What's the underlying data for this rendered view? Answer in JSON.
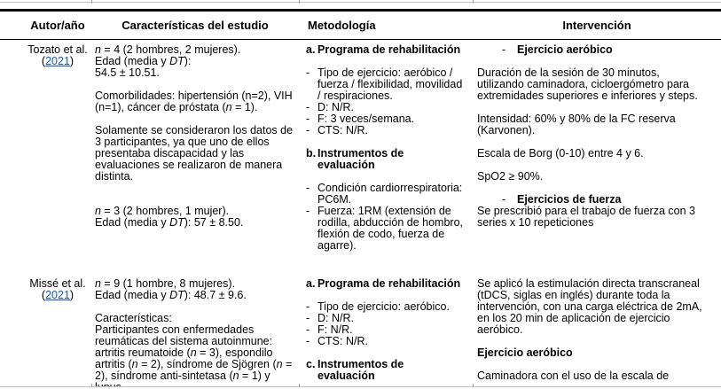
{
  "colors": {
    "text": "#000000",
    "link": "#1155cc",
    "rule": "#000000",
    "gridline": "#bfbfbf",
    "grid_tick": "#9e9e9e"
  },
  "table": {
    "headers": [
      "Autor/año",
      "Características del estudio",
      "Metodología",
      "Intervención"
    ],
    "rows": [
      {
        "author": {
          "blocks": [
            {
              "type": "p",
              "runs": [
                {
                  "t": "Tozato et al."
                }
              ]
            },
            {
              "type": "p",
              "runs": [
                {
                  "t": "("
                },
                {
                  "t": "2021",
                  "link": true
                },
                {
                  "t": ")"
                }
              ]
            }
          ]
        },
        "caracteristicas": {
          "blocks": [
            {
              "type": "p",
              "runs": [
                {
                  "t": "n",
                  "i": true
                },
                {
                  "t": " = 4 (2 hombres, 2 mujeres)."
                }
              ]
            },
            {
              "type": "p",
              "runs": [
                {
                  "t": "Edad (media y "
                },
                {
                  "t": "DT",
                  "i": true
                },
                {
                  "t": "):"
                }
              ]
            },
            {
              "type": "p",
              "runs": [
                {
                  "t": "54.5 ± 10.51."
                }
              ]
            },
            {
              "type": "p",
              "gap": 1,
              "runs": [
                {
                  "t": "Comorbilidades: hipertensión (n=2), VIH (n=1), cáncer de próstata ("
                },
                {
                  "t": "n",
                  "i": true
                },
                {
                  "t": " = 1)."
                }
              ]
            },
            {
              "type": "p",
              "gap": 1,
              "runs": [
                {
                  "t": "Solamente se consideraron los datos de 3 participantes, ya que uno de ellos presentaba discapacidad y las evaluaciones se realizaron de manera distinta."
                }
              ]
            },
            {
              "type": "p",
              "gap": 2,
              "runs": [
                {
                  "t": "n",
                  "i": true
                },
                {
                  "t": " = 3 (2 hombres, 1 mujer)."
                }
              ]
            },
            {
              "type": "p",
              "runs": [
                {
                  "t": "Edad (media y "
                },
                {
                  "t": "DT",
                  "i": true
                },
                {
                  "t": "): 57 ± 8.50."
                }
              ]
            }
          ]
        },
        "metodologia": {
          "blocks": [
            {
              "type": "alpha",
              "marker": "a.",
              "runs": [
                {
                  "t": "Programa de rehabilitación",
                  "b": true
                }
              ]
            },
            {
              "type": "dash",
              "gap": 1,
              "runs": [
                {
                  "t": "Tipo de ejercicio: aeróbico / fuerza / flexibilidad, movilidad / respiraciones."
                }
              ]
            },
            {
              "type": "dash",
              "runs": [
                {
                  "t": "D: N/R."
                }
              ]
            },
            {
              "type": "dash",
              "runs": [
                {
                  "t": "F: 3 veces/semana."
                }
              ]
            },
            {
              "type": "dash",
              "runs": [
                {
                  "t": "CTS: N/R."
                }
              ]
            },
            {
              "type": "alpha",
              "marker": "b.",
              "gap": 1,
              "runs": [
                {
                  "t": "Instrumentos de",
                  "b": true
                },
                {
                  "br": true
                },
                {
                  "t": "evaluación",
                  "b": true
                }
              ]
            },
            {
              "type": "dash",
              "gap": 1,
              "runs": [
                {
                  "t": "Condición cardiorrespiratoria: PC6M."
                }
              ]
            },
            {
              "type": "dash",
              "runs": [
                {
                  "t": "Fuerza: 1RM (extensión de rodilla, abducción de hombro, flexión de codo, fuerza de agarre)."
                }
              ]
            }
          ]
        },
        "intervencion": {
          "blocks": [
            {
              "type": "dashind",
              "runs": [
                {
                  "t": "Ejercicio aeróbico",
                  "b": true
                }
              ]
            },
            {
              "type": "p",
              "gap": 1,
              "runs": [
                {
                  "t": "Duración de la sesión de 30 minutos, utilizando caminadora, cicloergómetro para extremidades superiores e inferiores y steps."
                }
              ]
            },
            {
              "type": "p",
              "gap": 1,
              "runs": [
                {
                  "t": "Intensidad: 60% y 80% de la FC reserva (Karvonen)."
                }
              ]
            },
            {
              "type": "p",
              "gap": 1,
              "runs": [
                {
                  "t": "Escala de Borg (0-10) entre 4 y 6."
                }
              ]
            },
            {
              "type": "p",
              "gap": 1,
              "runs": [
                {
                  "t": "SpO2 ≥ 90%."
                }
              ]
            },
            {
              "type": "dashind",
              "gap": 1,
              "runs": [
                {
                  "t": "Ejercicios de fuerza",
                  "b": true
                }
              ]
            },
            {
              "type": "p",
              "runs": [
                {
                  "t": "Se prescribió para el trabajo de fuerza con 3 series x 10 repeticiones"
                }
              ]
            }
          ]
        }
      },
      {
        "author": {
          "blocks": [
            {
              "type": "p",
              "runs": [
                {
                  "t": "Missé et al."
                }
              ]
            },
            {
              "type": "p",
              "runs": [
                {
                  "t": "("
                },
                {
                  "t": "2021",
                  "link": true
                },
                {
                  "t": ")"
                }
              ]
            }
          ]
        },
        "caracteristicas": {
          "blocks": [
            {
              "type": "p",
              "runs": [
                {
                  "t": "n",
                  "i": true
                },
                {
                  "t": " = 9 (1 hombre, 8 mujeres)."
                }
              ]
            },
            {
              "type": "p",
              "runs": [
                {
                  "t": "Edad (media y "
                },
                {
                  "t": "DT",
                  "i": true
                },
                {
                  "t": "): 48.7 ± 9.6."
                }
              ]
            },
            {
              "type": "p",
              "gap": 1,
              "runs": [
                {
                  "t": "Características:"
                }
              ]
            },
            {
              "type": "p",
              "runs": [
                {
                  "t": "Participantes con enfermedades reumáticas del sistema autoinmune: artritis reumatoide ("
                },
                {
                  "t": "n",
                  "i": true
                },
                {
                  "t": " = 3), espondilo artritis ("
                },
                {
                  "t": "n",
                  "i": true
                },
                {
                  "t": " = 2), síndrome de Sjögren ("
                },
                {
                  "t": "n",
                  "i": true
                },
                {
                  "t": " = 2), síndrome anti-sintetasa ("
                },
                {
                  "t": "n",
                  "i": true
                },
                {
                  "t": " = 1) y lupus"
                }
              ]
            }
          ]
        },
        "metodologia": {
          "blocks": [
            {
              "type": "alpha",
              "marker": "a.",
              "runs": [
                {
                  "t": "Programa de rehabilitación",
                  "b": true
                }
              ]
            },
            {
              "type": "dash",
              "gap": 1,
              "runs": [
                {
                  "t": "Tipo de ejercicio: aeróbico."
                }
              ]
            },
            {
              "type": "dash",
              "runs": [
                {
                  "t": "D: N/R."
                }
              ]
            },
            {
              "type": "dash",
              "runs": [
                {
                  "t": "F: N/R."
                }
              ]
            },
            {
              "type": "dash",
              "runs": [
                {
                  "t": "CTS: N/R."
                }
              ]
            },
            {
              "type": "alpha",
              "marker": "c.",
              "gap": 1,
              "runs": [
                {
                  "t": "Instrumentos de",
                  "b": true
                },
                {
                  "br": true
                },
                {
                  "t": "evaluación",
                  "b": true
                }
              ]
            }
          ]
        },
        "intervencion": {
          "blocks": [
            {
              "type": "p",
              "runs": [
                {
                  "t": "Se aplicó la estimulación directa transcraneal (tDCS, siglas en inglés) durante toda la intervención, con una carga eléctrica de 2mA, en los 20 min de aplicación de ejercicio aeróbico."
                }
              ]
            },
            {
              "type": "p",
              "gap": 1,
              "runs": [
                {
                  "t": "Ejercicio aeróbico",
                  "b": true
                }
              ]
            },
            {
              "type": "p",
              "gap": 1,
              "runs": [
                {
                  "t": "Caminadora con el uso de la escala de"
                }
              ]
            }
          ]
        }
      }
    ]
  }
}
